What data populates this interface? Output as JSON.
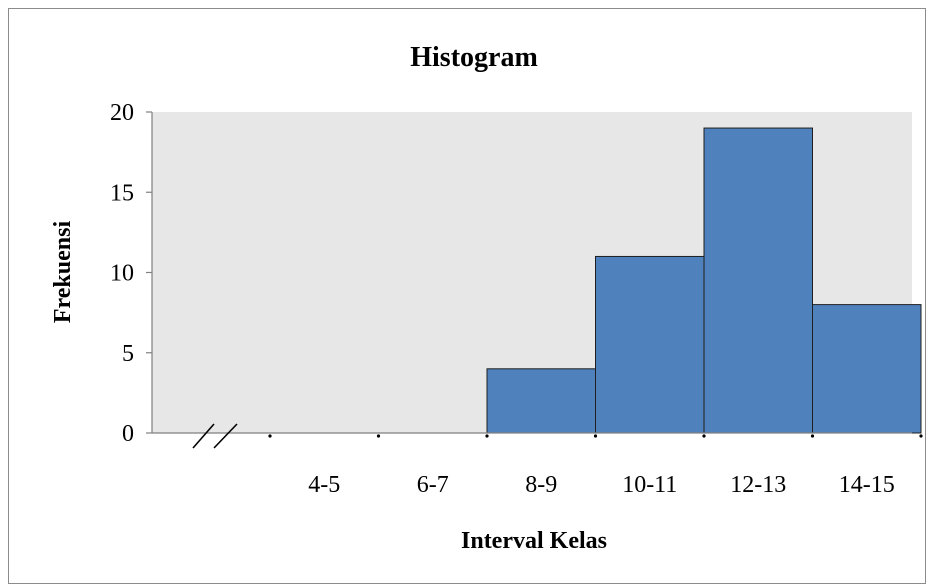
{
  "chart_data": {
    "type": "bar",
    "title": "Histogram",
    "xlabel": "Interval Kelas",
    "ylabel": "Frekuensi",
    "categories": [
      "4-5",
      "6-7",
      "8-9",
      "10-11",
      "12-13",
      "14-15"
    ],
    "values": [
      0,
      0,
      4,
      11,
      19,
      8
    ],
    "ylim": [
      0,
      20
    ],
    "yticks": [
      "0",
      "5",
      "10",
      "15",
      "20"
    ],
    "grid": false,
    "axis_break": true,
    "colors": {
      "bar": "#4f81bd",
      "bar_edge": "#1f1f1f",
      "plot_bg": "#e7e7e7",
      "axis": "#808080"
    }
  }
}
